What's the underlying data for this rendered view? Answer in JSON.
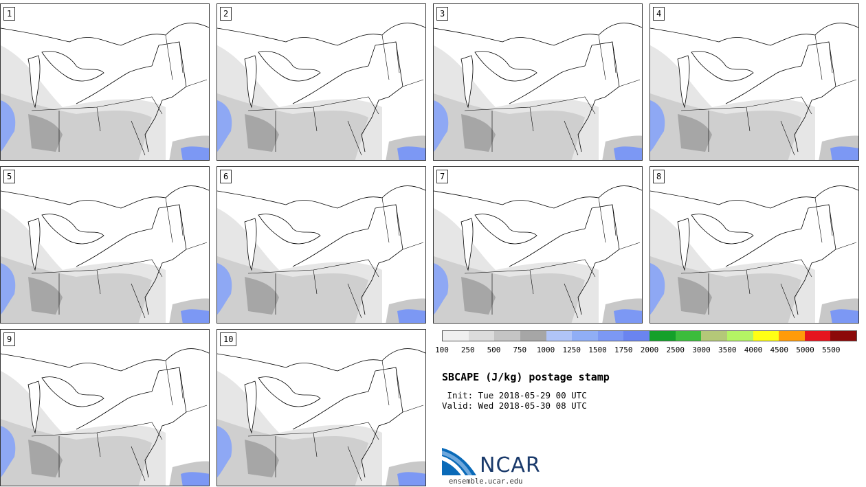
{
  "panels": [
    {
      "label": "1"
    },
    {
      "label": "2"
    },
    {
      "label": "3"
    },
    {
      "label": "4"
    },
    {
      "label": "5"
    },
    {
      "label": "6"
    },
    {
      "label": "7"
    },
    {
      "label": "8"
    },
    {
      "label": "9"
    },
    {
      "label": "10"
    }
  ],
  "colorbar": {
    "colors": [
      "#f0f0f0",
      "#dcdcdc",
      "#c4c4c4",
      "#a6a6a6",
      "#b0c4f8",
      "#90aef6",
      "#7c98f4",
      "#6a84f0",
      "#14a02a",
      "#3cbc3c",
      "#b4c878",
      "#b4f464",
      "#ffff14",
      "#ff9b0a",
      "#e6141e",
      "#8c0a0a"
    ],
    "ticks": [
      "100",
      "250",
      "500",
      "750",
      "1000",
      "1250",
      "1500",
      "1750",
      "2000",
      "2500",
      "3000",
      "3500",
      "4000",
      "4500",
      "5000",
      "5500"
    ]
  },
  "title": "SBCAPE (J/kg) postage stamp",
  "init": " Init: Tue 2018-05-29 00 UTC",
  "valid": "Valid: Wed 2018-05-30 08 UTC",
  "logo": {
    "name": "NCAR",
    "url": "ensemble.ucar.edu"
  }
}
